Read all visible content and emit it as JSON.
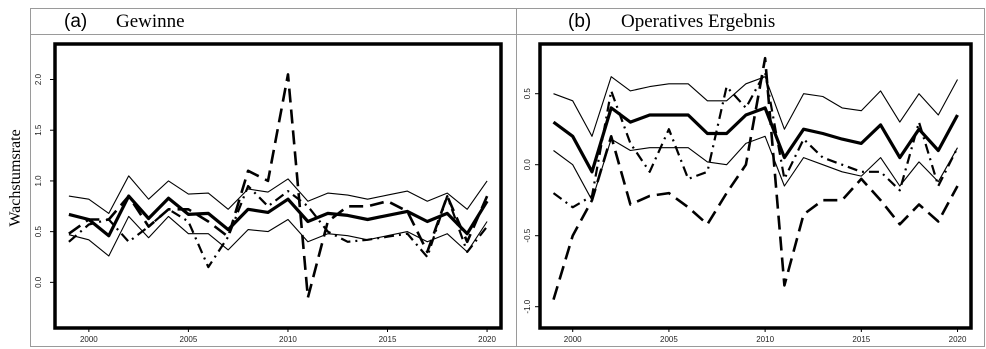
{
  "ylabel": "Wachstumsrate",
  "chart_data": [
    {
      "type": "line",
      "panel_label": "(a)",
      "title": "Gewinne",
      "ylabel": "Wachstumsrate",
      "x": [
        1999,
        2000,
        2001,
        2002,
        2003,
        2004,
        2005,
        2006,
        2007,
        2008,
        2009,
        2010,
        2011,
        2012,
        2013,
        2014,
        2015,
        2016,
        2017,
        2018,
        2019,
        2020
      ],
      "xticks": [
        2000,
        2005,
        2010,
        2015,
        2020
      ],
      "yticks": [
        "0.0",
        "0.5",
        "1.0",
        "1.5",
        "2.0"
      ],
      "ylim": [
        -0.45,
        2.35
      ],
      "xlim": [
        1998.3,
        2020.7
      ],
      "series": [
        {
          "style": "thick-solid",
          "values": [
            0.67,
            0.62,
            0.46,
            0.85,
            0.63,
            0.83,
            0.67,
            0.68,
            0.52,
            0.72,
            0.69,
            0.82,
            0.6,
            0.68,
            0.66,
            0.62,
            0.66,
            0.7,
            0.6,
            0.68,
            0.48,
            0.8
          ]
        },
        {
          "style": "thin-solid-upper",
          "values": [
            0.85,
            0.82,
            0.68,
            1.05,
            0.82,
            1.0,
            0.87,
            0.88,
            0.72,
            0.92,
            0.89,
            1.02,
            0.8,
            0.88,
            0.86,
            0.82,
            0.86,
            0.9,
            0.8,
            0.88,
            0.72,
            1.0
          ]
        },
        {
          "style": "thin-solid-lower",
          "values": [
            0.47,
            0.42,
            0.26,
            0.65,
            0.44,
            0.65,
            0.48,
            0.48,
            0.32,
            0.52,
            0.5,
            0.62,
            0.4,
            0.48,
            0.46,
            0.42,
            0.46,
            0.5,
            0.4,
            0.48,
            0.3,
            0.6
          ]
        },
        {
          "style": "dashed",
          "values": [
            0.48,
            0.62,
            0.62,
            0.85,
            0.55,
            0.72,
            0.72,
            0.6,
            0.45,
            1.1,
            1.0,
            2.05,
            -0.15,
            0.6,
            0.75,
            0.75,
            0.8,
            0.7,
            0.3,
            0.85,
            0.4,
            0.85
          ]
        },
        {
          "style": "dash-dot",
          "values": [
            0.4,
            0.57,
            0.62,
            0.4,
            0.55,
            0.72,
            0.6,
            0.15,
            0.45,
            0.95,
            0.75,
            0.9,
            0.75,
            0.5,
            0.4,
            0.42,
            0.45,
            0.48,
            0.25,
            0.85,
            0.3,
            0.55
          ]
        }
      ]
    },
    {
      "type": "line",
      "panel_label": "(b)",
      "title": "Operatives Ergebnis",
      "x": [
        1999,
        2000,
        2001,
        2002,
        2003,
        2004,
        2005,
        2006,
        2007,
        2008,
        2009,
        2010,
        2011,
        2012,
        2013,
        2014,
        2015,
        2016,
        2017,
        2018,
        2019,
        2020
      ],
      "xticks": [
        2000,
        2005,
        2010,
        2015,
        2020
      ],
      "yticks": [
        "-1.0",
        "-0.5",
        "0.0",
        "0.5"
      ],
      "ylim": [
        -1.15,
        0.85
      ],
      "xlim": [
        1998.3,
        2020.7
      ],
      "series": [
        {
          "style": "thick-solid",
          "values": [
            0.3,
            0.2,
            -0.05,
            0.4,
            0.3,
            0.35,
            0.35,
            0.35,
            0.22,
            0.22,
            0.35,
            0.4,
            0.05,
            0.25,
            0.22,
            0.18,
            0.15,
            0.28,
            0.05,
            0.25,
            0.1,
            0.35
          ]
        },
        {
          "style": "thin-solid-upper",
          "values": [
            0.5,
            0.45,
            0.2,
            0.62,
            0.52,
            0.55,
            0.57,
            0.57,
            0.45,
            0.45,
            0.57,
            0.62,
            0.25,
            0.5,
            0.48,
            0.4,
            0.38,
            0.52,
            0.3,
            0.5,
            0.35,
            0.6
          ]
        },
        {
          "style": "thin-solid-lower",
          "values": [
            0.1,
            0.0,
            -0.25,
            0.18,
            0.1,
            0.12,
            0.12,
            0.12,
            0.02,
            0.0,
            0.15,
            0.2,
            -0.15,
            0.05,
            0.0,
            -0.05,
            -0.08,
            0.05,
            -0.15,
            0.02,
            -0.12,
            0.12
          ]
        },
        {
          "style": "dashed",
          "values": [
            -0.95,
            -0.5,
            -0.25,
            0.2,
            -0.28,
            -0.22,
            -0.2,
            -0.3,
            -0.42,
            -0.2,
            0.0,
            0.75,
            -0.85,
            -0.35,
            -0.25,
            -0.25,
            -0.1,
            -0.25,
            -0.42,
            -0.28,
            -0.4,
            -0.15
          ]
        },
        {
          "style": "dash-dot",
          "values": [
            -0.2,
            -0.3,
            -0.22,
            0.52,
            0.15,
            -0.05,
            0.25,
            -0.1,
            -0.05,
            0.55,
            0.4,
            0.65,
            -0.1,
            0.18,
            0.05,
            0.0,
            -0.05,
            -0.05,
            -0.18,
            0.3,
            -0.15,
            0.12
          ]
        }
      ]
    }
  ]
}
